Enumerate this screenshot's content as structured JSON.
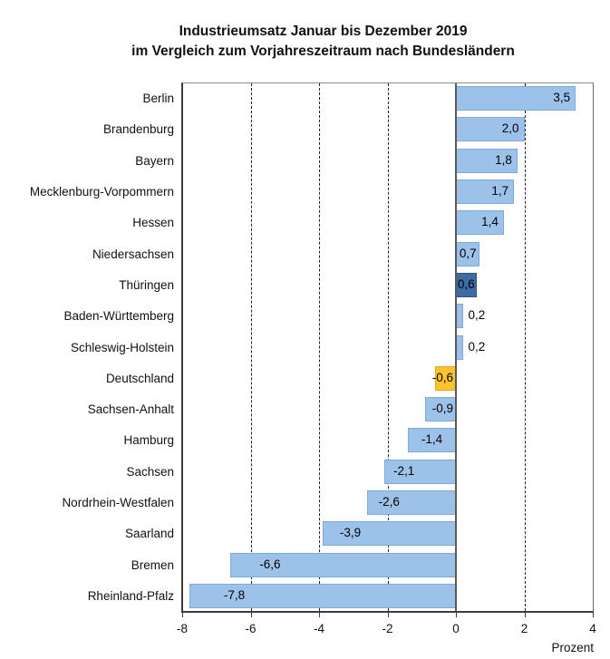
{
  "title": {
    "line1": "Industrieumsatz Januar bis Dezember 2019",
    "line2": "im Vergleich zum Vorjahreszeitraum nach Bundesländern"
  },
  "axis": {
    "label": "Prozent",
    "tick_labels": [
      "-8",
      "-6",
      "-4",
      "-2",
      "0",
      "2",
      "4"
    ],
    "tick_values": [
      -8,
      -6,
      -4,
      -2,
      0,
      2,
      4
    ],
    "min": -8,
    "max": 4
  },
  "colors": {
    "bar_default": "#9CC2EA",
    "bar_default_border": "#80A9DB",
    "bar_dark": "#3D6CA5",
    "bar_dark_border": "#2E5480",
    "bar_yellow": "#FCC32D",
    "bar_yellow_border": "#E3AA1E",
    "grid": "#222222",
    "zero_line": "#5A5A5A",
    "axis_line": "#3C3C3C",
    "text": "#000000"
  },
  "chart_data": {
    "type": "bar",
    "orientation": "horizontal",
    "title": "Industrieumsatz Januar bis Dezember 2019 im Vergleich zum Vorjahreszeitraum nach Bundesländern",
    "xlabel": "Prozent",
    "ylabel": "",
    "xlim": [
      -8,
      4
    ],
    "xticks": [
      -8,
      -6,
      -4,
      -2,
      0,
      2,
      4
    ],
    "grid": "vertical-dashed",
    "legend": "none",
    "categories": [
      "Berlin",
      "Brandenburg",
      "Bayern",
      "Mecklenburg-Vorpommern",
      "Hessen",
      "Niedersachsen",
      "Thüringen",
      "Baden-Württemberg",
      "Schleswig-Holstein",
      "Deutschland",
      "Sachsen-Anhalt",
      "Hamburg",
      "Sachsen",
      "Nordrhein-Westfalen",
      "Saarland",
      "Bremen",
      "Rheinland-Pfalz"
    ],
    "values": [
      3.5,
      2.0,
      1.8,
      1.7,
      1.4,
      0.7,
      0.6,
      0.2,
      0.2,
      -0.6,
      -0.9,
      -1.4,
      -2.1,
      -2.6,
      -3.9,
      -6.6,
      -7.8
    ],
    "bars": [
      {
        "category": "Berlin",
        "value": 3.5,
        "label": "3,5",
        "style": "default"
      },
      {
        "category": "Brandenburg",
        "value": 2.0,
        "label": "2,0",
        "style": "default"
      },
      {
        "category": "Bayern",
        "value": 1.8,
        "label": "1,8",
        "style": "default"
      },
      {
        "category": "Mecklenburg-Vorpommern",
        "value": 1.7,
        "label": "1,7",
        "style": "default"
      },
      {
        "category": "Hessen",
        "value": 1.4,
        "label": "1,4",
        "style": "default"
      },
      {
        "category": "Niedersachsen",
        "value": 0.7,
        "label": "0,7",
        "style": "default"
      },
      {
        "category": "Thüringen",
        "value": 0.6,
        "label": "0,6",
        "style": "dark"
      },
      {
        "category": "Baden-Württemberg",
        "value": 0.2,
        "label": "0,2",
        "style": "default"
      },
      {
        "category": "Schleswig-Holstein",
        "value": 0.2,
        "label": "0,2",
        "style": "default"
      },
      {
        "category": "Deutschland",
        "value": -0.6,
        "label": "-0,6",
        "style": "yellow"
      },
      {
        "category": "Sachsen-Anhalt",
        "value": -0.9,
        "label": "-0,9",
        "style": "default"
      },
      {
        "category": "Hamburg",
        "value": -1.4,
        "label": "-1,4",
        "style": "default"
      },
      {
        "category": "Sachsen",
        "value": -2.1,
        "label": "-2,1",
        "style": "default"
      },
      {
        "category": "Nordrhein-Westfalen",
        "value": -2.6,
        "label": "-2,6",
        "style": "default"
      },
      {
        "category": "Saarland",
        "value": -3.9,
        "label": "-3,9",
        "style": "default"
      },
      {
        "category": "Bremen",
        "value": -6.6,
        "label": "-6,6",
        "style": "default"
      },
      {
        "category": "Rheinland-Pfalz",
        "value": -7.8,
        "label": "-7,8",
        "style": "default"
      }
    ]
  }
}
